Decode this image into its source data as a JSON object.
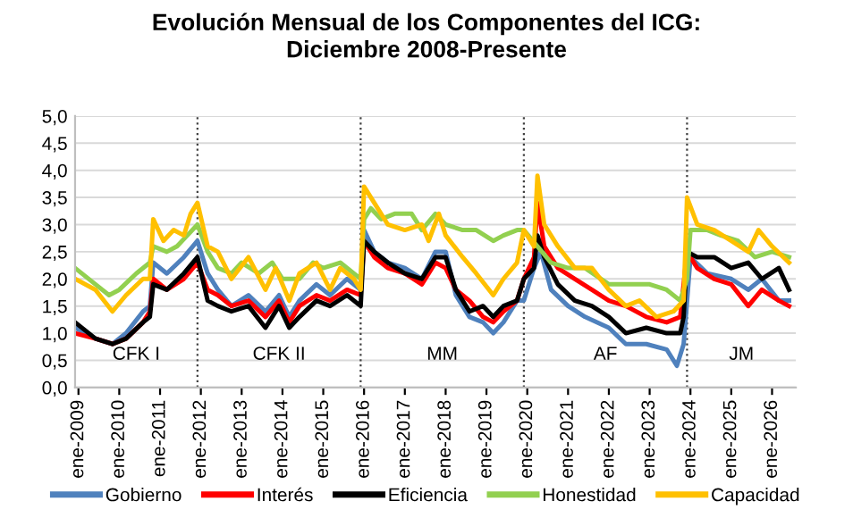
{
  "chart_data": {
    "type": "line",
    "title": "Evolución Mensual de los Componentes del ICG:\nDiciembre 2008-Presente",
    "series": [
      {
        "name": "Gobierno",
        "color": "#4f81bd",
        "x": [
          "2008-12",
          "2009-06",
          "2009-11",
          "2010-03",
          "2010-08",
          "2010-10",
          "2010-11",
          "2011-03",
          "2011-08",
          "2011-12",
          "2012-03",
          "2012-06",
          "2012-10",
          "2013-03",
          "2013-08",
          "2013-12",
          "2014-03",
          "2014-06",
          "2014-11",
          "2015-03",
          "2015-08",
          "2015-12",
          "2016-01",
          "2016-04",
          "2016-08",
          "2017-01",
          "2017-06",
          "2017-10",
          "2018-01",
          "2018-04",
          "2018-08",
          "2018-12",
          "2019-03",
          "2019-06",
          "2019-10",
          "2019-12",
          "2020-03",
          "2020-05",
          "2020-08",
          "2021-01",
          "2021-06",
          "2022-01",
          "2022-06",
          "2022-12",
          "2023-06",
          "2023-09",
          "2023-11",
          "2024-01",
          "2024-06",
          "2025-01",
          "2025-06",
          "2025-10",
          "2026-03",
          "2026-06"
        ],
        "values": [
          1.1,
          0.9,
          0.8,
          1.0,
          1.4,
          1.5,
          2.3,
          2.1,
          2.4,
          2.7,
          2.1,
          1.8,
          1.5,
          1.7,
          1.4,
          1.7,
          1.3,
          1.6,
          1.9,
          1.7,
          2.0,
          1.8,
          2.9,
          2.5,
          2.3,
          2.2,
          2.0,
          2.5,
          2.5,
          1.7,
          1.3,
          1.2,
          1.0,
          1.2,
          1.6,
          1.6,
          2.2,
          2.5,
          1.8,
          1.5,
          1.3,
          1.1,
          0.8,
          0.8,
          0.7,
          0.4,
          0.8,
          2.4,
          2.1,
          2.0,
          1.8,
          2.0,
          1.6,
          1.6
        ]
      },
      {
        "name": "Interés",
        "color": "#ff0000",
        "x": [
          "2008-12",
          "2009-06",
          "2009-11",
          "2010-03",
          "2010-08",
          "2010-10",
          "2010-11",
          "2011-03",
          "2011-08",
          "2011-12",
          "2012-03",
          "2012-06",
          "2012-10",
          "2013-03",
          "2013-08",
          "2013-12",
          "2014-03",
          "2014-06",
          "2014-11",
          "2015-03",
          "2015-08",
          "2015-12",
          "2016-01",
          "2016-04",
          "2016-08",
          "2017-01",
          "2017-06",
          "2017-10",
          "2018-01",
          "2018-04",
          "2018-08",
          "2018-12",
          "2019-03",
          "2019-06",
          "2019-10",
          "2019-12",
          "2020-03",
          "2020-04",
          "2020-06",
          "2020-10",
          "2021-03",
          "2021-08",
          "2022-01",
          "2022-06",
          "2022-12",
          "2023-06",
          "2023-10",
          "2023-12",
          "2024-03",
          "2024-08",
          "2025-01",
          "2025-06",
          "2025-10",
          "2026-03",
          "2026-06"
        ],
        "values": [
          1.0,
          0.9,
          0.8,
          0.9,
          1.2,
          1.4,
          2.0,
          1.8,
          2.0,
          2.3,
          1.8,
          1.7,
          1.5,
          1.6,
          1.3,
          1.6,
          1.2,
          1.5,
          1.7,
          1.6,
          1.8,
          1.7,
          2.7,
          2.4,
          2.2,
          2.1,
          1.9,
          2.3,
          2.2,
          1.8,
          1.6,
          1.3,
          1.2,
          1.4,
          1.6,
          2.0,
          2.4,
          3.4,
          2.6,
          2.2,
          2.0,
          1.8,
          1.6,
          1.5,
          1.3,
          1.2,
          1.3,
          2.5,
          2.2,
          2.0,
          1.9,
          1.5,
          1.8,
          1.6,
          1.5
        ]
      },
      {
        "name": "Eficiencia",
        "color": "#000000",
        "x": [
          "2008-12",
          "2009-06",
          "2009-11",
          "2010-03",
          "2010-08",
          "2010-10",
          "2010-11",
          "2011-03",
          "2011-08",
          "2011-12",
          "2012-03",
          "2012-06",
          "2012-10",
          "2013-03",
          "2013-08",
          "2013-12",
          "2014-03",
          "2014-06",
          "2014-11",
          "2015-03",
          "2015-08",
          "2015-12",
          "2016-01",
          "2016-04",
          "2016-08",
          "2017-01",
          "2017-06",
          "2017-10",
          "2018-01",
          "2018-04",
          "2018-08",
          "2018-12",
          "2019-03",
          "2019-06",
          "2019-10",
          "2019-12",
          "2020-03",
          "2020-04",
          "2020-06",
          "2020-10",
          "2021-03",
          "2021-08",
          "2022-01",
          "2022-06",
          "2022-12",
          "2023-06",
          "2023-10",
          "2023-11",
          "2023-12",
          "2024-03",
          "2024-08",
          "2025-01",
          "2025-06",
          "2025-10",
          "2026-03",
          "2026-06"
        ],
        "values": [
          1.2,
          0.9,
          0.8,
          0.9,
          1.2,
          1.3,
          1.9,
          1.8,
          2.1,
          2.4,
          1.6,
          1.5,
          1.4,
          1.5,
          1.1,
          1.5,
          1.1,
          1.3,
          1.6,
          1.5,
          1.7,
          1.5,
          2.7,
          2.5,
          2.3,
          2.1,
          2.0,
          2.4,
          2.4,
          1.8,
          1.4,
          1.5,
          1.3,
          1.5,
          1.6,
          2.0,
          2.2,
          2.8,
          2.4,
          1.9,
          1.6,
          1.5,
          1.3,
          1.0,
          1.1,
          1.0,
          1.0,
          1.3,
          2.5,
          2.4,
          2.4,
          2.2,
          2.3,
          2.0,
          2.2,
          1.8
        ]
      },
      {
        "name": "Honestidad",
        "color": "#92d050",
        "x": [
          "2008-12",
          "2009-06",
          "2009-10",
          "2010-01",
          "2010-06",
          "2010-10",
          "2010-11",
          "2011-03",
          "2011-06",
          "2011-09",
          "2011-12",
          "2012-03",
          "2012-06",
          "2012-10",
          "2013-01",
          "2013-06",
          "2013-10",
          "2014-01",
          "2014-06",
          "2014-10",
          "2015-01",
          "2015-06",
          "2015-10",
          "2015-12",
          "2016-01",
          "2016-03",
          "2016-06",
          "2016-10",
          "2017-03",
          "2017-06",
          "2017-10",
          "2018-01",
          "2018-06",
          "2018-10",
          "2019-03",
          "2019-06",
          "2019-10",
          "2019-12",
          "2020-04",
          "2020-08",
          "2021-01",
          "2021-06",
          "2022-01",
          "2022-06",
          "2023-01",
          "2023-06",
          "2023-10",
          "2023-12",
          "2024-01",
          "2024-06",
          "2024-10",
          "2025-03",
          "2025-08",
          "2026-01",
          "2026-06"
        ],
        "values": [
          2.2,
          1.9,
          1.7,
          1.8,
          2.1,
          2.3,
          2.6,
          2.5,
          2.6,
          2.8,
          3.0,
          2.5,
          2.2,
          2.1,
          2.3,
          2.1,
          2.3,
          2.0,
          2.0,
          2.3,
          2.2,
          2.3,
          2.1,
          2.0,
          3.1,
          3.3,
          3.1,
          3.2,
          3.2,
          2.9,
          3.2,
          3.0,
          2.9,
          2.9,
          2.7,
          2.8,
          2.9,
          2.9,
          2.6,
          2.3,
          2.2,
          2.2,
          1.9,
          1.9,
          1.9,
          1.8,
          1.6,
          2.0,
          2.9,
          2.9,
          2.8,
          2.7,
          2.4,
          2.5,
          2.4
        ]
      },
      {
        "name": "Capacidad",
        "color": "#ffc000",
        "x": [
          "2008-12",
          "2009-06",
          "2009-11",
          "2010-03",
          "2010-08",
          "2010-10",
          "2010-11",
          "2011-02",
          "2011-05",
          "2011-08",
          "2011-10",
          "2011-12",
          "2012-03",
          "2012-06",
          "2012-10",
          "2013-03",
          "2013-08",
          "2013-11",
          "2014-03",
          "2014-06",
          "2014-11",
          "2015-03",
          "2015-06",
          "2015-10",
          "2015-12",
          "2016-01",
          "2016-04",
          "2016-08",
          "2017-01",
          "2017-06",
          "2017-08",
          "2017-11",
          "2018-01",
          "2018-06",
          "2018-10",
          "2019-03",
          "2019-06",
          "2019-10",
          "2019-12",
          "2020-03",
          "2020-04",
          "2020-06",
          "2020-10",
          "2021-03",
          "2021-08",
          "2022-01",
          "2022-06",
          "2022-10",
          "2023-03",
          "2023-08",
          "2023-11",
          "2023-12",
          "2024-03",
          "2024-08",
          "2025-01",
          "2025-06",
          "2025-09",
          "2026-01",
          "2026-06"
        ],
        "values": [
          2.0,
          1.8,
          1.4,
          1.7,
          2.0,
          2.0,
          3.1,
          2.7,
          2.9,
          2.8,
          3.2,
          3.4,
          2.6,
          2.5,
          2.0,
          2.4,
          1.8,
          2.2,
          1.6,
          2.1,
          2.3,
          1.8,
          2.2,
          2.0,
          1.8,
          3.7,
          3.4,
          3.0,
          2.9,
          3.0,
          2.7,
          3.2,
          2.8,
          2.4,
          2.1,
          1.7,
          2.0,
          2.3,
          2.9,
          2.6,
          3.9,
          3.0,
          2.6,
          2.2,
          2.2,
          1.8,
          1.5,
          1.6,
          1.3,
          1.4,
          1.6,
          3.5,
          3.0,
          2.9,
          2.7,
          2.5,
          2.9,
          2.6,
          2.3
        ]
      }
    ],
    "xlim": [
      "2008-12",
      "2026-08"
    ],
    "xticks": [
      {
        "value": "2009-01",
        "label": "ene-2009"
      },
      {
        "value": "2010-01",
        "label": "ene-2010"
      },
      {
        "value": "2011-01",
        "label": "ene-2011"
      },
      {
        "value": "2012-01",
        "label": "ene-2012"
      },
      {
        "value": "2013-01",
        "label": "ene-2013"
      },
      {
        "value": "2014-01",
        "label": "ene-2014"
      },
      {
        "value": "2015-01",
        "label": "ene-2015"
      },
      {
        "value": "2016-01",
        "label": "ene-2016"
      },
      {
        "value": "2017-01",
        "label": "ene-2017"
      },
      {
        "value": "2018-01",
        "label": "ene-2018"
      },
      {
        "value": "2019-01",
        "label": "ene-2019"
      },
      {
        "value": "2020-01",
        "label": "ene-2020"
      },
      {
        "value": "2021-01",
        "label": "ene-2021"
      },
      {
        "value": "2022-01",
        "label": "ene-2022"
      },
      {
        "value": "2023-01",
        "label": "ene-2023"
      },
      {
        "value": "2024-01",
        "label": "ene-2024"
      },
      {
        "value": "2025-01",
        "label": "ene-2025"
      },
      {
        "value": "2026-01",
        "label": "ene-2026"
      }
    ],
    "ylim": [
      0,
      5
    ],
    "yticks": [
      {
        "value": 0,
        "label": "0,0"
      },
      {
        "value": 0.5,
        "label": "0,5"
      },
      {
        "value": 1,
        "label": "1,0"
      },
      {
        "value": 1.5,
        "label": "1,5"
      },
      {
        "value": 2,
        "label": "2,0"
      },
      {
        "value": 2.5,
        "label": "2,5"
      },
      {
        "value": 3,
        "label": "3,0"
      },
      {
        "value": 3.5,
        "label": "3,5"
      },
      {
        "value": 4,
        "label": "4,0"
      },
      {
        "value": 4.5,
        "label": "4,5"
      },
      {
        "value": 5,
        "label": "5,0"
      }
    ],
    "ref_lines": [
      {
        "axis": "x",
        "value": "2011-12",
        "color": "#404040",
        "line_style": "dotted"
      },
      {
        "axis": "x",
        "value": "2015-12",
        "color": "#404040",
        "line_style": "dotted"
      },
      {
        "axis": "x",
        "value": "2019-12",
        "color": "#404040",
        "line_style": "dotted"
      },
      {
        "axis": "x",
        "value": "2023-12",
        "color": "#404040",
        "line_style": "dotted"
      }
    ],
    "annotations": [
      "CFK I",
      "CFK II",
      "MM",
      "AF",
      "JM"
    ],
    "grid": "y",
    "legend": "bottom",
    "marker": "none",
    "line_style": "solid"
  }
}
